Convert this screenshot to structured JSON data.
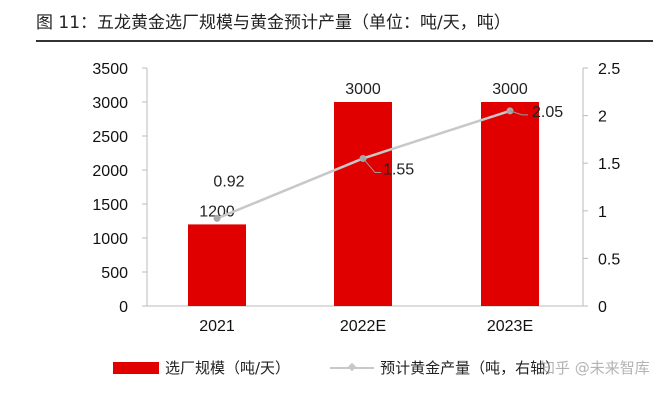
{
  "title": "图 11：五龙黄金选厂规模与黄金预计产量（单位：吨/天，吨）",
  "watermark": "知乎 @未来智库",
  "chart_data": {
    "type": "bar+line",
    "categories": [
      "2021",
      "2022E",
      "2023E"
    ],
    "series": [
      {
        "name": "选厂规模（吨/天）",
        "type": "bar",
        "axis": "left",
        "color": "#e00000",
        "values": [
          1200,
          3000,
          3000
        ],
        "labels": [
          "1200",
          "3000",
          "3000"
        ]
      },
      {
        "name": "预计黄金产量（吨，右轴）",
        "type": "line",
        "axis": "right",
        "color": "#c8c8c8",
        "values": [
          0.92,
          1.55,
          2.05
        ],
        "labels": [
          "0.92",
          "1.55",
          "2.05"
        ]
      }
    ],
    "left_axis": {
      "range": [
        0,
        3500
      ],
      "ticks": [
        "0",
        "500",
        "1000",
        "1500",
        "2000",
        "2500",
        "3000",
        "3500"
      ]
    },
    "right_axis": {
      "range": [
        0,
        2.5
      ],
      "ticks": [
        "0",
        "0.5",
        "1",
        "1.5",
        "2",
        "2.5"
      ]
    },
    "grid": false,
    "legend": "bottom"
  }
}
